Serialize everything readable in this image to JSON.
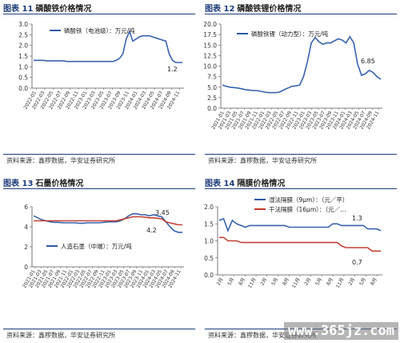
{
  "charts": [
    {
      "fig": "图表 11",
      "title": "磷酸铁价格情况",
      "source": "资料来源：鑫椤数据，华安证券研究所"
    },
    {
      "fig": "图表 12",
      "title": "磷酸铁锂价格情况",
      "source": "资料来源：鑫椤数据，华安证券研究所"
    },
    {
      "fig": "图表 13",
      "title": "石墨价格情况",
      "source": "资料来源：鑫椤数据，华安证券研究所"
    },
    {
      "fig": "图表 14",
      "title": "隔膜价格情况",
      "source": "资料来源：鑫椤数据，华安证券研究所"
    }
  ],
  "watermark": "www.365jz.com",
  "chart_data": [
    {
      "type": "line",
      "ylim": [
        0,
        3
      ],
      "yticks": [
        "0.0",
        "0.5",
        "1.0",
        "1.5",
        "2.0",
        "2.5",
        "3.0"
      ],
      "xticks": [
        "2022-01",
        "2022-03",
        "2022-05",
        "2022-07",
        "2022-09",
        "2022-11",
        "2023-01",
        "2023-03",
        "2023-05",
        "2023-07",
        "2023-09",
        "2023-11",
        "2024-01",
        "2024-03",
        "2024-05",
        "2024-07",
        "2024-09",
        "2024-11"
      ],
      "series": [
        {
          "name": "磷酸铁（电池级）：万元/吨",
          "color": "#2f5aa8",
          "values": [
            1.3,
            1.3,
            1.3,
            1.3,
            1.28,
            1.28,
            1.28,
            1.28,
            1.28,
            1.28,
            1.25,
            1.25,
            1.25,
            1.25,
            1.25,
            1.25,
            1.25,
            1.25,
            1.25,
            1.25,
            1.25,
            1.25,
            1.25,
            1.25,
            1.25,
            1.3,
            1.4,
            1.6,
            2.3,
            2.65,
            2.2,
            2.3,
            2.4,
            2.45,
            2.45,
            2.45,
            2.4,
            2.35,
            2.3,
            2.25,
            2.2,
            1.6,
            1.3,
            1.2,
            1.2,
            1.2
          ]
        }
      ],
      "annotation": {
        "text": "1.2"
      }
    },
    {
      "type": "line",
      "ylim": [
        0,
        20
      ],
      "yticks": [
        "0.0",
        "2.5",
        "5.0",
        "7.5",
        "10.0",
        "12.5",
        "15.0",
        "17.5",
        "20.0"
      ],
      "xticks": [
        "2021-01",
        "2021-03",
        "2021-05",
        "2021-07",
        "2021-09",
        "2021-11",
        "2022-01",
        "2022-03",
        "2022-05",
        "2022-07",
        "2022-09",
        "2022-11",
        "2023-01",
        "2023-03",
        "2023-05",
        "2023-07",
        "2023-09",
        "2023-11",
        "2024-01",
        "2024-03",
        "2024-05",
        "2024-07",
        "2024-09",
        "2024-11"
      ],
      "series": [
        {
          "name": "磷酸铁锂（动力型）：万元/吨",
          "color": "#2f5aa8",
          "values": [
            5.5,
            5.2,
            5.0,
            4.9,
            4.8,
            4.6,
            4.4,
            4.3,
            4.2,
            4.2,
            4.0,
            3.8,
            3.7,
            3.7,
            3.7,
            3.9,
            4.4,
            4.8,
            5.2,
            5.3,
            5.5,
            7.5,
            11.0,
            15.5,
            16.8,
            15.8,
            15.2,
            15.5,
            15.5,
            16.0,
            16.5,
            16.2,
            15.5,
            17.0,
            15.5,
            10.5,
            7.8,
            8.2,
            9.0,
            8.5,
            7.5,
            6.85
          ]
        }
      ],
      "annotation": {
        "text": "6.85"
      }
    },
    {
      "type": "line",
      "ylim": [
        0,
        6
      ],
      "yticks": [
        "0",
        "2",
        "4",
        "6"
      ],
      "xticks": [
        "2021-01",
        "2021-03",
        "2021-05",
        "2021-07",
        "2021-09",
        "2021-11",
        "2022-01",
        "2022-03",
        "2022-05",
        "2022-07",
        "2022-09",
        "2022-11",
        "2023-01",
        "2023-03",
        "2023-05",
        "2023-07",
        "2023-09",
        "2023-11",
        "2024-01",
        "2024-03",
        "2024-05",
        "2024-07",
        "2024-09",
        "2024-11"
      ],
      "series": [
        {
          "name": "人造石墨（中端）：万元/吨",
          "color": "#2f5aa8",
          "values": [
            5.1,
            4.9,
            4.7,
            4.6,
            4.5,
            4.45,
            4.45,
            4.4,
            4.4,
            4.4,
            4.4,
            4.35,
            4.35,
            4.4,
            4.4,
            4.4,
            4.4,
            4.45,
            4.5,
            4.5,
            4.5,
            4.6,
            4.8,
            5.1,
            5.3,
            5.3,
            5.2,
            5.2,
            5.1,
            5.2,
            5.1,
            5.0,
            4.5,
            4.0,
            3.6,
            3.45,
            3.45
          ]
        },
        {
          "name": "",
          "color": "#c0392b",
          "values": [
            4.6,
            4.6,
            4.6,
            4.6,
            4.6,
            4.6,
            4.6,
            4.6,
            4.6,
            4.6,
            4.6,
            4.6,
            4.6,
            4.6,
            4.6,
            4.6,
            4.6,
            4.6,
            4.6,
            4.6,
            4.6,
            4.7,
            4.8,
            4.9,
            5.0,
            5.0,
            5.0,
            4.95,
            4.9,
            4.9,
            4.85,
            4.8,
            4.5,
            4.4,
            4.3,
            4.2,
            4.2
          ]
        }
      ],
      "annotations": [
        {
          "text": "3.45"
        },
        {
          "text": "4.2"
        }
      ]
    },
    {
      "type": "line",
      "ylim": [
        0,
        2
      ],
      "yticks": [
        "0.0",
        "0.5",
        "1.0",
        "1.5",
        "2.0"
      ],
      "xticks": [
        "2月",
        "5月",
        "8月",
        "11月",
        "2月",
        "5月",
        "8月",
        "11月",
        "2月",
        "5月",
        "8月",
        "11月",
        "2月",
        "5月",
        "8月"
      ],
      "series": [
        {
          "name": "湿法隔膜（9μm）：（元／平）",
          "color": "#2f5aa8",
          "values": [
            1.6,
            1.65,
            1.3,
            1.6,
            1.5,
            1.45,
            1.4,
            1.45,
            1.45,
            1.45,
            1.45,
            1.45,
            1.45,
            1.45,
            1.45,
            1.45,
            1.4,
            1.4,
            1.4,
            1.4,
            1.4,
            1.4,
            1.4,
            1.4,
            1.4,
            1.4,
            1.5,
            1.5,
            1.45,
            1.45,
            1.45,
            1.45,
            1.45,
            1.45,
            1.35,
            1.35,
            1.35,
            1.3
          ]
        },
        {
          "name": "干法隔膜（16μm）：（元／…",
          "color": "#c0392b",
          "values": [
            1.1,
            1.1,
            1.0,
            1.0,
            1.0,
            0.95,
            0.95,
            0.95,
            0.95,
            0.95,
            0.95,
            0.95,
            0.95,
            0.95,
            0.95,
            0.95,
            0.95,
            0.95,
            0.95,
            0.95,
            0.95,
            0.95,
            0.95,
            0.95,
            0.95,
            0.95,
            0.95,
            0.95,
            0.85,
            0.8,
            0.8,
            0.8,
            0.8,
            0.8,
            0.8,
            0.7,
            0.7,
            0.7
          ]
        }
      ],
      "annotations": [
        {
          "text": "1.3"
        },
        {
          "text": "0.7"
        }
      ]
    }
  ]
}
